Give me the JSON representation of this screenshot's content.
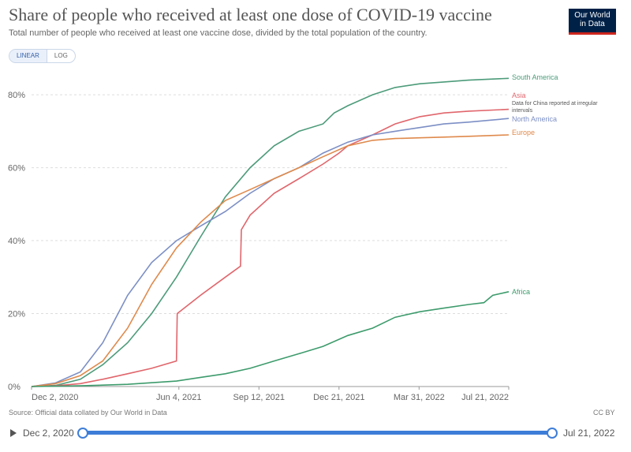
{
  "header": {
    "title": "Share of people who received at least one dose of COVID-19 vaccine",
    "subtitle": "Total number of people who received at least one vaccine dose, divided by the total population of the country.",
    "logo_line1": "Our World",
    "logo_line2": "in Data"
  },
  "scale_toggle": {
    "linear_label": "LINEAR",
    "log_label": "LOG",
    "selected": "LINEAR"
  },
  "footer": {
    "source": "Source: Official data collated by Our World in Data",
    "license": "CC BY"
  },
  "timeline": {
    "start_label": "Dec 2, 2020",
    "end_label": "Jul 21, 2022",
    "play_icon": "play-icon"
  },
  "colors": {
    "South America": "#4c9b7a",
    "Asia": "#e0666c",
    "North America": "#7c8fc5",
    "Europe": "#df8a4c",
    "Africa": "#3d9b6c"
  },
  "chart_data": {
    "type": "line",
    "title": "Share of people who received at least one dose of COVID-19 vaccine",
    "ylim": [
      0,
      85
    ],
    "yticks": [
      0,
      20,
      40,
      60,
      80
    ],
    "ytick_labels": [
      "0%",
      "20%",
      "40%",
      "60%",
      "80%"
    ],
    "x_range": [
      "2020-12-02",
      "2022-07-21"
    ],
    "xticks": [
      "2020-12-02",
      "2021-06-04",
      "2021-09-12",
      "2021-12-21",
      "2022-03-31",
      "2022-07-21"
    ],
    "xtick_labels": [
      "Dec 2, 2020",
      "Jun 4, 2021",
      "Sep 12, 2021",
      "Dec 21, 2021",
      "Mar 31, 2022",
      "Jul 21, 2022"
    ],
    "grid": true,
    "legend": "right, inline labels at line ends",
    "annotation": "Data for China reported at irregular intervals",
    "series": [
      {
        "name": "South America",
        "x": [
          "2020-12-02",
          "2021-01-01",
          "2021-02-01",
          "2021-03-01",
          "2021-04-01",
          "2021-05-01",
          "2021-06-01",
          "2021-07-01",
          "2021-08-01",
          "2021-09-01",
          "2021-10-01",
          "2021-11-01",
          "2021-12-01",
          "2021-12-15",
          "2022-01-01",
          "2022-02-01",
          "2022-03-01",
          "2022-04-01",
          "2022-05-01",
          "2022-06-01",
          "2022-07-21"
        ],
        "y": [
          0,
          0.3,
          2,
          6,
          12,
          20,
          30,
          41,
          52,
          60,
          66,
          70,
          72,
          75,
          77,
          80,
          82,
          83,
          83.5,
          84,
          84.5
        ]
      },
      {
        "name": "Asia",
        "x": [
          "2020-12-02",
          "2021-01-01",
          "2021-02-01",
          "2021-03-01",
          "2021-04-01",
          "2021-05-01",
          "2021-06-01",
          "2021-06-02",
          "2021-07-01",
          "2021-08-01",
          "2021-08-20",
          "2021-08-21",
          "2021-09-01",
          "2021-10-01",
          "2021-11-01",
          "2021-12-01",
          "2021-12-21",
          "2022-01-01",
          "2022-02-01",
          "2022-03-01",
          "2022-04-01",
          "2022-05-01",
          "2022-06-01",
          "2022-07-21"
        ],
        "y": [
          0,
          0.2,
          0.8,
          2,
          3.5,
          5,
          7,
          20,
          25,
          30,
          33,
          43,
          47,
          53,
          57,
          61,
          64,
          66,
          69,
          72,
          74,
          75,
          75.5,
          76
        ]
      },
      {
        "name": "North America",
        "x": [
          "2020-12-02",
          "2021-01-01",
          "2021-02-01",
          "2021-03-01",
          "2021-04-01",
          "2021-05-01",
          "2021-06-01",
          "2021-07-01",
          "2021-08-01",
          "2021-09-01",
          "2021-10-01",
          "2021-11-01",
          "2021-12-01",
          "2022-01-01",
          "2022-02-01",
          "2022-03-01",
          "2022-04-01",
          "2022-05-01",
          "2022-06-01",
          "2022-07-21"
        ],
        "y": [
          0,
          1,
          4,
          12,
          25,
          34,
          40,
          44,
          48,
          53,
          57,
          60,
          64,
          67,
          69,
          70,
          71,
          72,
          72.5,
          73.5
        ]
      },
      {
        "name": "Europe",
        "x": [
          "2020-12-02",
          "2021-01-01",
          "2021-02-01",
          "2021-03-01",
          "2021-04-01",
          "2021-05-01",
          "2021-06-01",
          "2021-07-01",
          "2021-08-01",
          "2021-09-01",
          "2021-10-01",
          "2021-11-01",
          "2021-12-01",
          "2022-01-01",
          "2022-02-01",
          "2022-03-01",
          "2022-04-01",
          "2022-05-01",
          "2022-06-01",
          "2022-07-21"
        ],
        "y": [
          0,
          0.8,
          3,
          7,
          16,
          28,
          38,
          45,
          51,
          54,
          57,
          60,
          63,
          66,
          67.5,
          68,
          68.2,
          68.4,
          68.6,
          69
        ]
      },
      {
        "name": "Africa",
        "x": [
          "2020-12-02",
          "2021-02-01",
          "2021-04-01",
          "2021-06-01",
          "2021-07-01",
          "2021-08-01",
          "2021-09-01",
          "2021-10-01",
          "2021-11-01",
          "2021-12-01",
          "2022-01-01",
          "2022-02-01",
          "2022-03-01",
          "2022-04-01",
          "2022-05-01",
          "2022-06-01",
          "2022-06-20",
          "2022-07-01",
          "2022-07-21"
        ],
        "y": [
          0,
          0.2,
          0.6,
          1.5,
          2.5,
          3.5,
          5,
          7,
          9,
          11,
          14,
          16,
          19,
          20.5,
          21.5,
          22.5,
          23,
          25,
          26
        ]
      }
    ]
  }
}
